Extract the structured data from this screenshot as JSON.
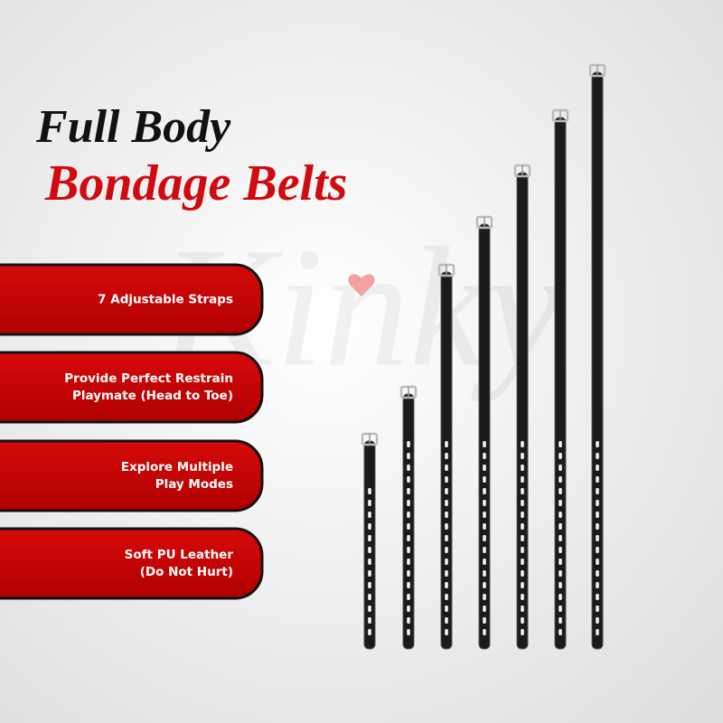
{
  "header": {
    "title_line1": "Full Body",
    "title_line2": "Bondage Belts"
  },
  "watermark": "Kinky",
  "features": [
    {
      "lines": [
        "7 Adjustable Straps"
      ]
    },
    {
      "lines": [
        "Provide Perfect Restrain",
        "Playmate (Head to Toe)"
      ]
    },
    {
      "lines": [
        "Explore Multiple",
        "Play Modes"
      ]
    },
    {
      "lines": [
        "Soft PU Leather",
        "(Do Not Hurt)"
      ]
    }
  ]
}
